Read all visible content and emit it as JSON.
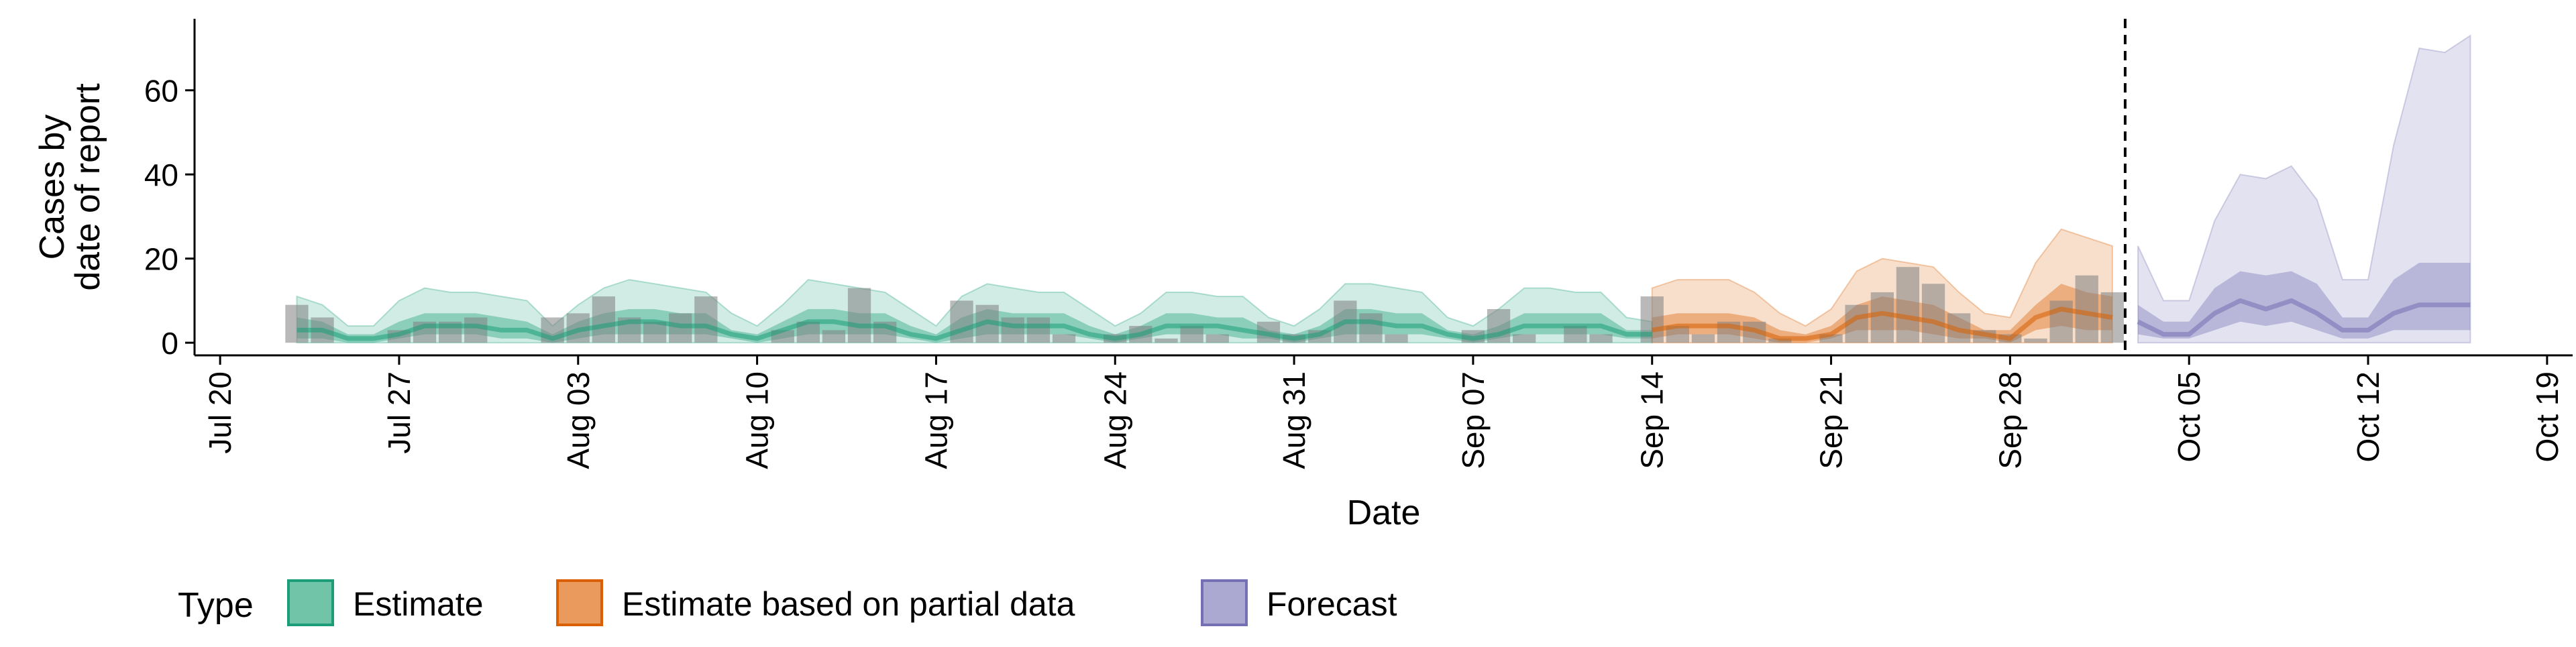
{
  "chart_data": {
    "type": "bar",
    "title": "",
    "xlabel": "Date",
    "ylabel_lines": [
      "Cases by",
      "date of report"
    ],
    "ylim": [
      -3,
      77
    ],
    "xlim": [
      "2020-07-19",
      "2020-10-20"
    ],
    "grid": false,
    "legend_position": "bottom",
    "y_ticks": [
      "0",
      "20",
      "40",
      "60"
    ],
    "x_ticks": [
      "Jul 20",
      "Jul 27",
      "Aug 03",
      "Aug 10",
      "Aug 17",
      "Aug 24",
      "Aug 31",
      "Sep 07",
      "Sep 14",
      "Sep 21",
      "Sep 28",
      "Oct 05",
      "Oct 12",
      "Oct 19"
    ],
    "x_tick_dates": [
      "2020-07-20",
      "2020-07-27",
      "2020-08-03",
      "2020-08-10",
      "2020-08-17",
      "2020-08-24",
      "2020-08-31",
      "2020-09-07",
      "2020-09-14",
      "2020-09-21",
      "2020-09-28",
      "2020-10-05",
      "2020-10-12",
      "2020-10-19"
    ],
    "forecast_cutoff_date": "2020-10-02",
    "observed_cases": {
      "dates": [
        "2020-07-23",
        "2020-07-24",
        "2020-07-25",
        "2020-07-26",
        "2020-07-27",
        "2020-07-28",
        "2020-07-29",
        "2020-07-30",
        "2020-07-31",
        "2020-08-01",
        "2020-08-02",
        "2020-08-03",
        "2020-08-04",
        "2020-08-05",
        "2020-08-06",
        "2020-08-07",
        "2020-08-08",
        "2020-08-09",
        "2020-08-10",
        "2020-08-11",
        "2020-08-12",
        "2020-08-13",
        "2020-08-14",
        "2020-08-15",
        "2020-08-16",
        "2020-08-17",
        "2020-08-18",
        "2020-08-19",
        "2020-08-20",
        "2020-08-21",
        "2020-08-22",
        "2020-08-23",
        "2020-08-24",
        "2020-08-25",
        "2020-08-26",
        "2020-08-27",
        "2020-08-28",
        "2020-08-29",
        "2020-08-30",
        "2020-08-31",
        "2020-09-01",
        "2020-09-02",
        "2020-09-03",
        "2020-09-04",
        "2020-09-05",
        "2020-09-06",
        "2020-09-07",
        "2020-09-08",
        "2020-09-09",
        "2020-09-10",
        "2020-09-11",
        "2020-09-12",
        "2020-09-13",
        "2020-09-14",
        "2020-09-15",
        "2020-09-16",
        "2020-09-17",
        "2020-09-18",
        "2020-09-19",
        "2020-09-20",
        "2020-09-21",
        "2020-09-22",
        "2020-09-23",
        "2020-09-24",
        "2020-09-25",
        "2020-09-26",
        "2020-09-27",
        "2020-09-28",
        "2020-09-29",
        "2020-09-30",
        "2020-10-01",
        "2020-10-02"
      ],
      "values": [
        9,
        6,
        0,
        0,
        3,
        5,
        5,
        6,
        0,
        0,
        6,
        7,
        11,
        6,
        5,
        7,
        11,
        0,
        0,
        3,
        5,
        3,
        13,
        5,
        0,
        0,
        10,
        9,
        6,
        6,
        2,
        0,
        2,
        4,
        1,
        4,
        2,
        0,
        5,
        2,
        3,
        10,
        7,
        2,
        0,
        0,
        3,
        8,
        2,
        0,
        4,
        2,
        0,
        11,
        4,
        2,
        5,
        5,
        1,
        0,
        2,
        9,
        12,
        18,
        14,
        7,
        3,
        2,
        1,
        10,
        16,
        12
      ]
    },
    "series": [
      {
        "name": "Estimate",
        "color": "#1b9e77",
        "dates": [
          "2020-07-23",
          "2020-07-24",
          "2020-07-25",
          "2020-07-26",
          "2020-07-27",
          "2020-07-28",
          "2020-07-29",
          "2020-07-30",
          "2020-07-31",
          "2020-08-01",
          "2020-08-02",
          "2020-08-03",
          "2020-08-04",
          "2020-08-05",
          "2020-08-06",
          "2020-08-07",
          "2020-08-08",
          "2020-08-09",
          "2020-08-10",
          "2020-08-11",
          "2020-08-12",
          "2020-08-13",
          "2020-08-14",
          "2020-08-15",
          "2020-08-16",
          "2020-08-17",
          "2020-08-18",
          "2020-08-19",
          "2020-08-20",
          "2020-08-21",
          "2020-08-22",
          "2020-08-23",
          "2020-08-24",
          "2020-08-25",
          "2020-08-26",
          "2020-08-27",
          "2020-08-28",
          "2020-08-29",
          "2020-08-30",
          "2020-08-31",
          "2020-09-01",
          "2020-09-02",
          "2020-09-03",
          "2020-09-04",
          "2020-09-05",
          "2020-09-06",
          "2020-09-07",
          "2020-09-08",
          "2020-09-09",
          "2020-09-10",
          "2020-09-11",
          "2020-09-12",
          "2020-09-13",
          "2020-09-14"
        ],
        "upper90": [
          11,
          9,
          4,
          4,
          10,
          13,
          12,
          12,
          11,
          10,
          4,
          9,
          13,
          15,
          14,
          13,
          12,
          7,
          4,
          9,
          15,
          14,
          13,
          12,
          8,
          4,
          11,
          14,
          13,
          12,
          12,
          8,
          4,
          7,
          12,
          12,
          11,
          11,
          6,
          4,
          8,
          14,
          14,
          13,
          12,
          6,
          4,
          8,
          13,
          13,
          12,
          12,
          6,
          5
        ],
        "upper50": [
          6,
          5,
          2,
          2,
          5,
          7,
          7,
          7,
          6,
          5,
          2,
          5,
          7,
          8,
          8,
          7,
          7,
          3,
          2,
          5,
          8,
          8,
          7,
          7,
          4,
          2,
          6,
          8,
          7,
          7,
          7,
          4,
          2,
          4,
          7,
          7,
          6,
          6,
          3,
          2,
          4,
          8,
          8,
          7,
          7,
          3,
          2,
          4,
          7,
          7,
          7,
          7,
          3,
          3
        ],
        "median": [
          3,
          3,
          1,
          1,
          2,
          4,
          4,
          4,
          3,
          3,
          1,
          3,
          4,
          5,
          5,
          4,
          4,
          2,
          1,
          3,
          5,
          5,
          4,
          4,
          2,
          1,
          3,
          5,
          4,
          4,
          4,
          2,
          1,
          2,
          4,
          4,
          4,
          3,
          2,
          1,
          2,
          5,
          5,
          4,
          4,
          2,
          1,
          2,
          4,
          4,
          4,
          4,
          2,
          2
        ],
        "lower50": [
          1,
          1,
          0,
          0,
          1,
          2,
          2,
          2,
          1,
          1,
          0,
          1,
          2,
          2,
          2,
          2,
          2,
          1,
          0,
          1,
          2,
          2,
          2,
          2,
          1,
          0,
          1,
          2,
          2,
          2,
          2,
          1,
          0,
          1,
          2,
          2,
          2,
          1,
          1,
          0,
          1,
          2,
          2,
          2,
          2,
          1,
          0,
          1,
          2,
          2,
          2,
          2,
          1,
          1
        ],
        "lower90": [
          0,
          0,
          0,
          0,
          0,
          0,
          0,
          0,
          0,
          0,
          0,
          0,
          0,
          0,
          0,
          0,
          0,
          0,
          0,
          0,
          0,
          0,
          0,
          0,
          0,
          0,
          0,
          0,
          0,
          0,
          0,
          0,
          0,
          0,
          0,
          0,
          0,
          0,
          0,
          0,
          0,
          0,
          0,
          0,
          0,
          0,
          0,
          0,
          0,
          0,
          0,
          0,
          0,
          0
        ]
      },
      {
        "name": "Estimate based on partial data",
        "color": "#d95f02",
        "dates": [
          "2020-09-14",
          "2020-09-15",
          "2020-09-16",
          "2020-09-17",
          "2020-09-18",
          "2020-09-19",
          "2020-09-20",
          "2020-09-21",
          "2020-09-22",
          "2020-09-23",
          "2020-09-24",
          "2020-09-25",
          "2020-09-26",
          "2020-09-27",
          "2020-09-28",
          "2020-09-29",
          "2020-09-30",
          "2020-10-01",
          "2020-10-02"
        ],
        "upper90": [
          13,
          15,
          15,
          15,
          12,
          7,
          4,
          8,
          17,
          20,
          19,
          18,
          12,
          7,
          6,
          19,
          27,
          25,
          23
        ],
        "upper50": [
          6,
          7,
          7,
          7,
          6,
          3,
          2,
          4,
          9,
          11,
          10,
          9,
          6,
          3,
          3,
          9,
          14,
          12,
          11
        ],
        "median": [
          3,
          4,
          4,
          4,
          3,
          1,
          1,
          2,
          6,
          7,
          6,
          5,
          3,
          2,
          1,
          6,
          8,
          7,
          6
        ],
        "lower50": [
          1,
          2,
          2,
          2,
          1,
          0,
          0,
          1,
          3,
          3,
          3,
          2,
          1,
          1,
          0,
          3,
          4,
          3,
          3
        ],
        "lower90": [
          0,
          0,
          0,
          0,
          0,
          0,
          0,
          0,
          0,
          0,
          0,
          0,
          0,
          0,
          0,
          0,
          0,
          0,
          0
        ]
      },
      {
        "name": "Forecast",
        "color": "#7570b3",
        "dates": [
          "2020-10-03",
          "2020-10-04",
          "2020-10-05",
          "2020-10-06",
          "2020-10-07",
          "2020-10-08",
          "2020-10-09",
          "2020-10-10",
          "2020-10-11",
          "2020-10-12",
          "2020-10-13",
          "2020-10-14",
          "2020-10-15",
          "2020-10-16"
        ],
        "upper90": [
          23,
          10,
          10,
          29,
          40,
          39,
          42,
          34,
          15,
          15,
          47,
          70,
          69,
          73
        ],
        "upper50": [
          9,
          5,
          5,
          13,
          17,
          16,
          17,
          14,
          6,
          6,
          15,
          19,
          19,
          19
        ],
        "median": [
          5,
          2,
          2,
          7,
          10,
          8,
          10,
          7,
          3,
          3,
          7,
          9,
          9,
          9
        ],
        "lower50": [
          2,
          1,
          1,
          3,
          5,
          4,
          5,
          3,
          1,
          1,
          3,
          3,
          3,
          3
        ],
        "lower90": [
          0,
          0,
          0,
          0,
          0,
          0,
          0,
          0,
          0,
          0,
          0,
          0,
          0,
          0
        ]
      }
    ]
  },
  "legend": {
    "title": "Type",
    "items": [
      {
        "label": "Estimate",
        "fill": "#72c4a8",
        "stroke": "#1b9e77"
      },
      {
        "label": "Estimate based on partial data",
        "fill": "#e99a5c",
        "stroke": "#d95f02"
      },
      {
        "label": "Forecast",
        "fill": "#aba8d2",
        "stroke": "#7570b3"
      }
    ]
  }
}
